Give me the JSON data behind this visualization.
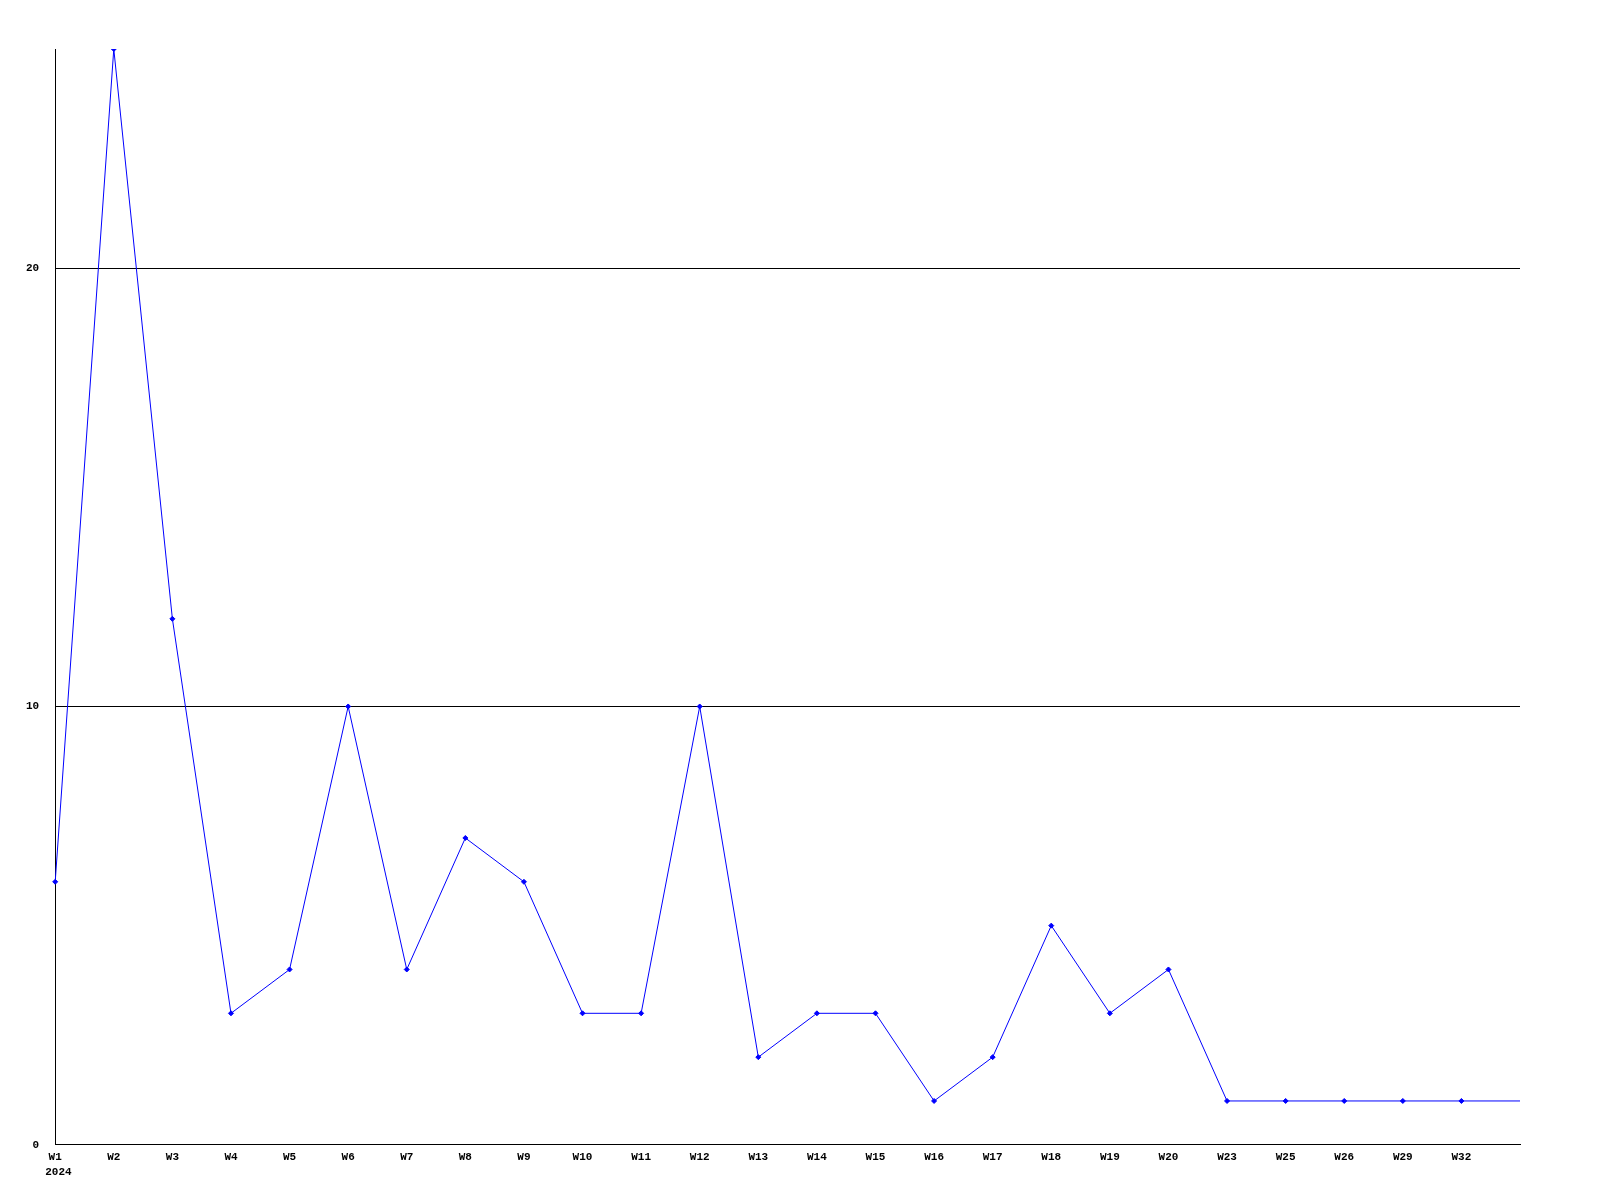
{
  "chart_data": {
    "type": "line",
    "categories": [
      "W1",
      "W2",
      "W3",
      "W4",
      "W5",
      "W6",
      "W7",
      "W8",
      "W9",
      "W10",
      "W11",
      "W12",
      "W13",
      "W14",
      "W15",
      "W16",
      "W17",
      "W18",
      "W19",
      "W20",
      "W23",
      "W25",
      "W26",
      "W29",
      "W32",
      null
    ],
    "series": [
      {
        "color": "#0000ff",
        "values": [
          6,
          25,
          12,
          3,
          4,
          10,
          4,
          7,
          6,
          3,
          3,
          10,
          2,
          3,
          3,
          1,
          2,
          5,
          3,
          4,
          1,
          1,
          1,
          1,
          1,
          1
        ]
      }
    ],
    "ylim": [
      0,
      25
    ],
    "yticks": [
      0,
      10,
      20
    ],
    "grid": "y",
    "legend": false,
    "marker": "diamond",
    "line_style": "solid",
    "annotations": [
      "2024"
    ]
  }
}
